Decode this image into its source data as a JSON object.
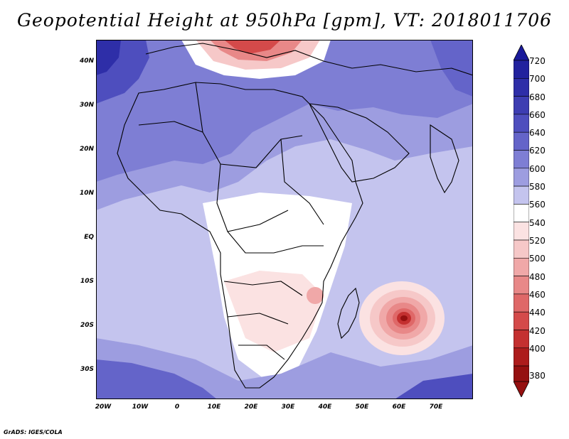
{
  "title": "Geopotential Height at 950hPa [gpm], VT: 2018011706",
  "credit": "GrADS: IGES/COLA",
  "map": {
    "lat_labels": [
      "40N",
      "30N",
      "20N",
      "10N",
      "EQ",
      "10S",
      "20S",
      "30S"
    ],
    "lon_labels": [
      "20W",
      "10W",
      "0",
      "10E",
      "20E",
      "30E",
      "40E",
      "50E",
      "60E",
      "70E"
    ]
  },
  "colorbar": {
    "levels": [
      "720",
      "700",
      "680",
      "660",
      "640",
      "620",
      "600",
      "580",
      "560",
      "540",
      "520",
      "500",
      "480",
      "460",
      "440",
      "420",
      "400",
      "380"
    ],
    "colors": {
      "c_gt720": "#1a1a9a",
      "c700": "#22229e",
      "c680": "#2e2ea8",
      "c660": "#3d3db2",
      "c640": "#4e4ebe",
      "c620": "#6464c9",
      "c600": "#7e7ed4",
      "c580": "#9d9de0",
      "c560": "#c4c4ee",
      "c540": "#ffffff",
      "c520": "#fbe2e2",
      "c500": "#f6c8c8",
      "c480": "#f0a8a8",
      "c460": "#e88888",
      "c440": "#df6868",
      "c420": "#d44a4a",
      "c400": "#c43030",
      "c380": "#ad1c1c",
      "c_lt380": "#951010"
    }
  }
}
